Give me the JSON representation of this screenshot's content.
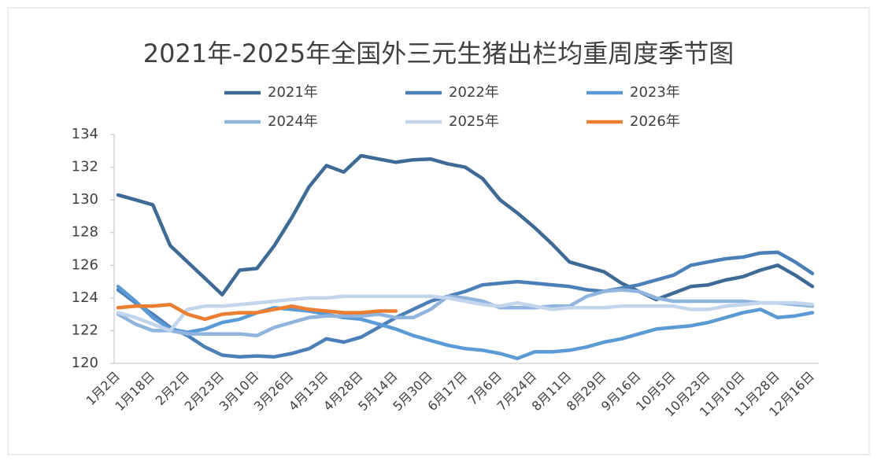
{
  "chart_data": {
    "type": "line",
    "title": "2021年-2025年全国外三元生猪出栏均重周度季节图",
    "categories": [
      "1月2日",
      null,
      "1月18日",
      null,
      "2月2日",
      null,
      "2月23日",
      null,
      "3月10日",
      null,
      "3月26日",
      null,
      "4月13日",
      null,
      "4月28日",
      null,
      "5月14日",
      null,
      "5月30日",
      null,
      "6月17日",
      null,
      "7月6日",
      null,
      "7月24日",
      null,
      "8月11日",
      null,
      "8月29日",
      null,
      "9月16日",
      null,
      "10月5日",
      null,
      "10月23日",
      null,
      "11月10日",
      null,
      "11月28日",
      null,
      "12月16日"
    ],
    "series": [
      {
        "name": "2021年",
        "color": "#3e6a96",
        "values": [
          130.3,
          130.0,
          129.7,
          127.2,
          126.2,
          125.2,
          124.2,
          125.7,
          125.8,
          127.2,
          128.9,
          130.8,
          132.1,
          131.7,
          132.7,
          132.5,
          132.3,
          132.45,
          132.5,
          132.2,
          132.0,
          131.3,
          130.0,
          129.2,
          128.3,
          127.3,
          126.2,
          125.9,
          125.6,
          124.9,
          124.4,
          123.9,
          124.3,
          124.7,
          124.8,
          125.1,
          125.3,
          125.7,
          126.0,
          125.4,
          124.7
        ]
      },
      {
        "name": "2022年",
        "color": "#4a7fb8",
        "values": [
          124.5,
          123.7,
          123.0,
          122.2,
          121.7,
          121.0,
          120.5,
          120.4,
          120.45,
          120.4,
          120.6,
          120.9,
          121.5,
          121.3,
          121.6,
          122.2,
          122.8,
          123.3,
          123.8,
          124.1,
          124.4,
          124.8,
          124.9,
          125.0,
          124.9,
          124.8,
          124.7,
          124.5,
          124.4,
          124.6,
          124.8,
          125.1,
          125.4,
          126.0,
          126.2,
          126.4,
          126.5,
          126.75,
          126.8,
          126.2,
          125.5
        ]
      },
      {
        "name": "2023年",
        "color": "#5b9bd5",
        "values": [
          124.7,
          123.8,
          122.8,
          122.1,
          121.9,
          122.1,
          122.5,
          122.7,
          123.1,
          123.4,
          123.3,
          123.2,
          123.0,
          122.8,
          122.7,
          122.4,
          122.1,
          121.7,
          121.4,
          121.1,
          120.9,
          120.8,
          120.6,
          120.3,
          120.7,
          120.7,
          120.8,
          121.0,
          121.3,
          121.5,
          121.8,
          122.1,
          122.2,
          122.3,
          122.5,
          122.8,
          123.1,
          123.3,
          122.8,
          122.9,
          123.1
        ]
      },
      {
        "name": "2024年",
        "color": "#8fb4de",
        "values": [
          123.0,
          122.4,
          122.0,
          122.0,
          121.8,
          121.8,
          121.8,
          121.8,
          121.7,
          122.2,
          122.5,
          122.8,
          122.9,
          122.9,
          122.9,
          123.0,
          122.8,
          122.8,
          123.3,
          124.1,
          124.0,
          123.8,
          123.4,
          123.4,
          123.4,
          123.5,
          123.5,
          124.1,
          124.4,
          124.5,
          124.4,
          124.0,
          123.8,
          123.8,
          123.8,
          123.8,
          123.8,
          123.7,
          123.7,
          123.6,
          123.5
        ]
      },
      {
        "name": "2025年",
        "color": "#c3d5ec",
        "values": [
          123.1,
          122.8,
          122.4,
          122.0,
          123.3,
          123.5,
          123.5,
          123.6,
          123.7,
          123.8,
          123.9,
          124.0,
          124.0,
          124.1,
          124.1,
          124.1,
          124.1,
          124.1,
          124.1,
          124.0,
          123.8,
          123.6,
          123.5,
          123.7,
          123.5,
          123.3,
          123.4,
          123.4,
          123.4,
          123.5,
          123.5,
          123.5,
          123.5,
          123.3,
          123.3,
          123.5,
          123.6,
          123.7,
          123.7,
          123.7,
          123.6
        ]
      },
      {
        "name": "2026年",
        "color": "#ed7d31",
        "values": [
          123.4,
          123.5,
          123.5,
          123.6,
          123.0,
          122.7,
          123.0,
          123.1,
          123.1,
          123.3,
          123.5,
          123.3,
          123.2,
          123.1,
          123.1,
          123.2,
          123.2,
          null,
          null,
          null,
          null,
          null,
          null,
          null,
          null,
          null,
          null,
          null,
          null,
          null,
          null,
          null,
          null,
          null,
          null,
          null,
          null,
          null,
          null,
          null,
          null
        ]
      }
    ],
    "ylim": [
      120,
      134
    ],
    "yticks": [
      120,
      122,
      124,
      126,
      128,
      130,
      132,
      134
    ],
    "grid": false,
    "legend": "top"
  }
}
